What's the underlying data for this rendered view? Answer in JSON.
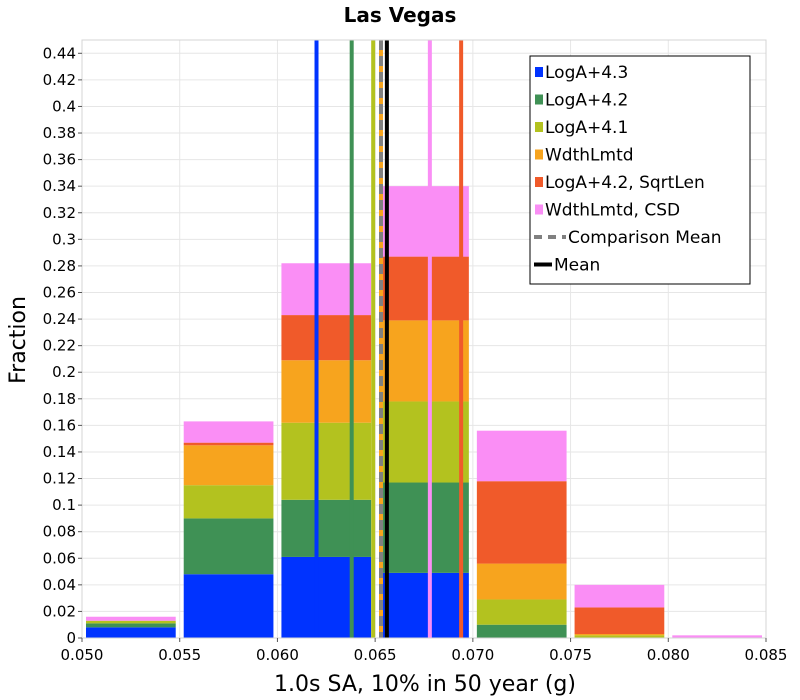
{
  "chart_data": {
    "type": "bar",
    "stacked": true,
    "title": "Las Vegas",
    "xlabel": "1.0s SA, 10% in 50 year (g)",
    "ylabel": "Fraction",
    "xlim": [
      0.05,
      0.085
    ],
    "ylim": [
      0,
      0.45
    ],
    "x_ticks": [
      "0.050",
      "0.055",
      "0.060",
      "0.065",
      "0.070",
      "0.075",
      "0.080",
      "0.085"
    ],
    "y_ticks": [
      "0",
      "0.02",
      "0.04",
      "0.06",
      "0.08",
      "0.1",
      "0.12",
      "0.14",
      "0.16",
      "0.18",
      "0.2",
      "0.22",
      "0.24",
      "0.26",
      "0.28",
      "0.3",
      "0.32",
      "0.34",
      "0.36",
      "0.38",
      "0.4",
      "0.42",
      "0.44"
    ],
    "grid": true,
    "legend_position": "top-right",
    "bins": [
      {
        "x0": 0.05,
        "x1": 0.055
      },
      {
        "x0": 0.055,
        "x1": 0.06
      },
      {
        "x0": 0.06,
        "x1": 0.065
      },
      {
        "x0": 0.065,
        "x1": 0.07
      },
      {
        "x0": 0.07,
        "x1": 0.075
      },
      {
        "x0": 0.075,
        "x1": 0.08
      },
      {
        "x0": 0.08,
        "x1": 0.085
      }
    ],
    "series": [
      {
        "name": "LogA+4.3",
        "color": "#0033ff",
        "values": [
          0.008,
          0.048,
          0.061,
          0.049,
          0.0,
          0.0,
          0.0
        ],
        "line_x": 0.062
      },
      {
        "name": "LogA+4.2",
        "color": "#3f9155",
        "values": [
          0.003,
          0.042,
          0.043,
          0.068,
          0.01,
          0.0,
          0.0
        ],
        "line_x": 0.0638
      },
      {
        "name": "LogA+4.1",
        "color": "#b3c21f",
        "values": [
          0.002,
          0.025,
          0.058,
          0.061,
          0.019,
          0.002,
          0.0
        ],
        "line_x": 0.0649
      },
      {
        "name": "WdthLmtd",
        "color": "#f7a41e",
        "values": [
          0.0,
          0.03,
          0.047,
          0.061,
          0.027,
          0.001,
          0.0
        ],
        "line_x": 0.0653
      },
      {
        "name": "LogA+4.2, SqrtLen",
        "color": "#f05a2a",
        "values": [
          0.0,
          0.002,
          0.034,
          0.048,
          0.062,
          0.02,
          0.0
        ],
        "line_x": 0.0694
      },
      {
        "name": "WdthLmtd, CSD",
        "color": "#fa8ef5",
        "values": [
          0.003,
          0.016,
          0.039,
          0.053,
          0.038,
          0.017,
          0.002
        ],
        "line_x": 0.0678
      }
    ],
    "comparison_mean": {
      "name": "Comparison Mean",
      "color": "#808080",
      "x": 0.0653
    },
    "mean": {
      "name": "Mean",
      "color": "#000000",
      "x": 0.0656
    }
  }
}
